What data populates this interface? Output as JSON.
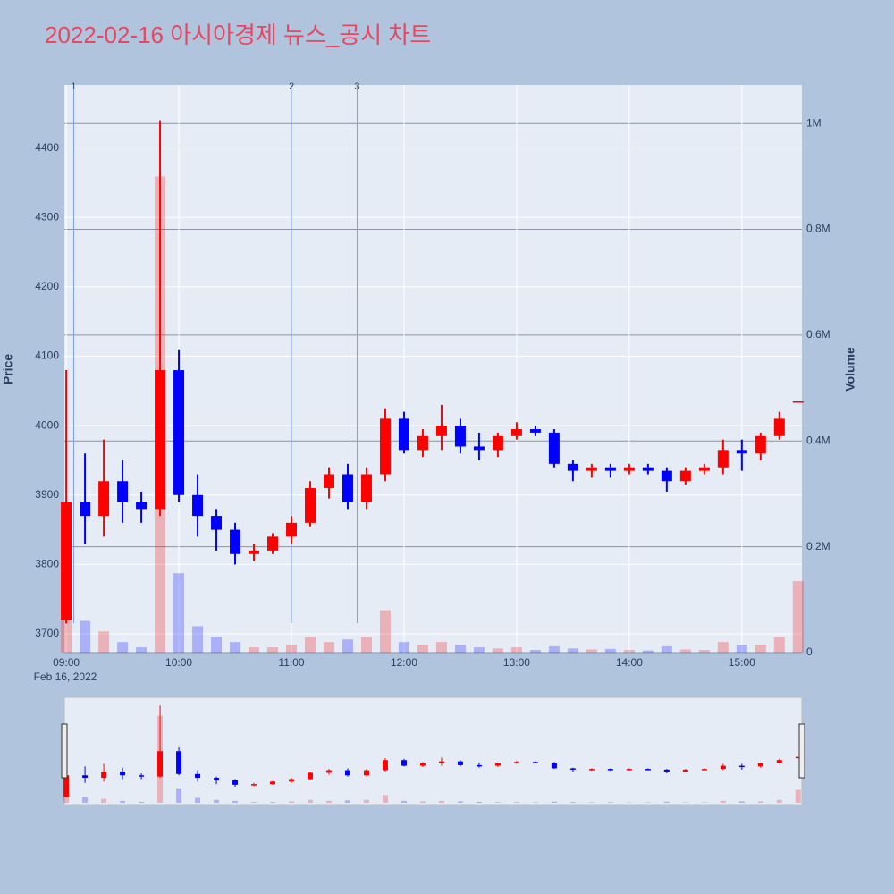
{
  "chart_data": {
    "type": "candlestick",
    "title": "2022-02-16 아시아경제 뉴스_공시 차트",
    "y_title": "Price",
    "y2_title": "Volume",
    "x_date_label": "Feb 16, 2022",
    "x": [
      "09:00",
      "09:10",
      "09:20",
      "09:30",
      "09:40",
      "09:50",
      "10:00",
      "10:10",
      "10:20",
      "10:30",
      "10:40",
      "10:50",
      "11:00",
      "11:10",
      "11:20",
      "11:30",
      "11:40",
      "11:50",
      "12:00",
      "12:10",
      "12:20",
      "12:30",
      "12:40",
      "12:50",
      "13:00",
      "13:10",
      "13:20",
      "13:30",
      "13:40",
      "13:50",
      "14:00",
      "14:10",
      "14:20",
      "14:30",
      "14:40",
      "14:50",
      "15:00",
      "15:10",
      "15:20",
      "15:30"
    ],
    "open": [
      3720,
      3890,
      3870,
      3920,
      3890,
      3880,
      4080,
      3900,
      3870,
      3850,
      3815,
      3820,
      3840,
      3860,
      3910,
      3930,
      3890,
      3930,
      4010,
      3965,
      3985,
      4000,
      3970,
      3965,
      3985,
      3995,
      3990,
      3945,
      3935,
      3940,
      3935,
      3940,
      3935,
      3920,
      3935,
      3940,
      3965,
      3960,
      3985,
      4035
    ],
    "high": [
      4080,
      3960,
      3980,
      3950,
      3905,
      4440,
      4110,
      3930,
      3880,
      3860,
      3830,
      3845,
      3870,
      3920,
      3940,
      3945,
      3940,
      4025,
      4020,
      3995,
      4030,
      4010,
      3990,
      3990,
      4005,
      4000,
      3995,
      3950,
      3945,
      3945,
      3945,
      3945,
      3940,
      3940,
      3945,
      3980,
      3980,
      3990,
      4020,
      4035
    ],
    "low": [
      3715,
      3830,
      3840,
      3860,
      3860,
      3870,
      3890,
      3840,
      3820,
      3800,
      3805,
      3815,
      3830,
      3855,
      3895,
      3880,
      3880,
      3920,
      3960,
      3955,
      3965,
      3960,
      3950,
      3955,
      3980,
      3985,
      3940,
      3920,
      3925,
      3925,
      3930,
      3930,
      3905,
      3915,
      3930,
      3930,
      3935,
      3950,
      3980,
      4035
    ],
    "close": [
      3890,
      3870,
      3920,
      3890,
      3880,
      4080,
      3900,
      3870,
      3850,
      3815,
      3820,
      3840,
      3860,
      3910,
      3930,
      3890,
      3930,
      4010,
      3965,
      3985,
      4000,
      3970,
      3965,
      3985,
      3995,
      3990,
      3945,
      3935,
      3940,
      3935,
      3940,
      3935,
      3920,
      3935,
      3940,
      3965,
      3960,
      3985,
      4010,
      4035
    ],
    "volume": [
      150000,
      60000,
      40000,
      20000,
      10000,
      900000,
      150000,
      50000,
      30000,
      20000,
      10000,
      10000,
      15000,
      30000,
      20000,
      25000,
      30000,
      80000,
      20000,
      15000,
      20000,
      15000,
      10000,
      8000,
      10000,
      5000,
      12000,
      8000,
      6000,
      7000,
      5000,
      4000,
      12000,
      6000,
      5000,
      20000,
      15000,
      15000,
      30000,
      135000
    ],
    "increasing_color": "#ff0000",
    "decreasing_color": "#0000ff",
    "xlim": [
      "08:59",
      "15:32"
    ],
    "xticks": [
      "09:00",
      "10:00",
      "11:00",
      "12:00",
      "13:00",
      "14:00",
      "15:00"
    ],
    "ylim": [
      3673,
      4491
    ],
    "yticks": [
      3700,
      3800,
      3900,
      4000,
      4100,
      4200,
      4300,
      4400
    ],
    "y2lim": [
      0,
      1073000
    ],
    "y2ticks": [
      0,
      {
        "value": 200000,
        "label": "0.2M"
      },
      {
        "value": 400000,
        "label": "0.4M"
      },
      {
        "value": 600000,
        "label": "0.6M"
      },
      {
        "value": 800000,
        "label": "0.8M"
      },
      {
        "value": 1000000,
        "label": "1M"
      }
    ],
    "annotations": [
      {
        "x": "09:04",
        "text": "1"
      },
      {
        "x": "11:00",
        "text": "2"
      },
      {
        "x": "11:35",
        "text": "3"
      }
    ],
    "grid": true,
    "rangeslider": true
  }
}
